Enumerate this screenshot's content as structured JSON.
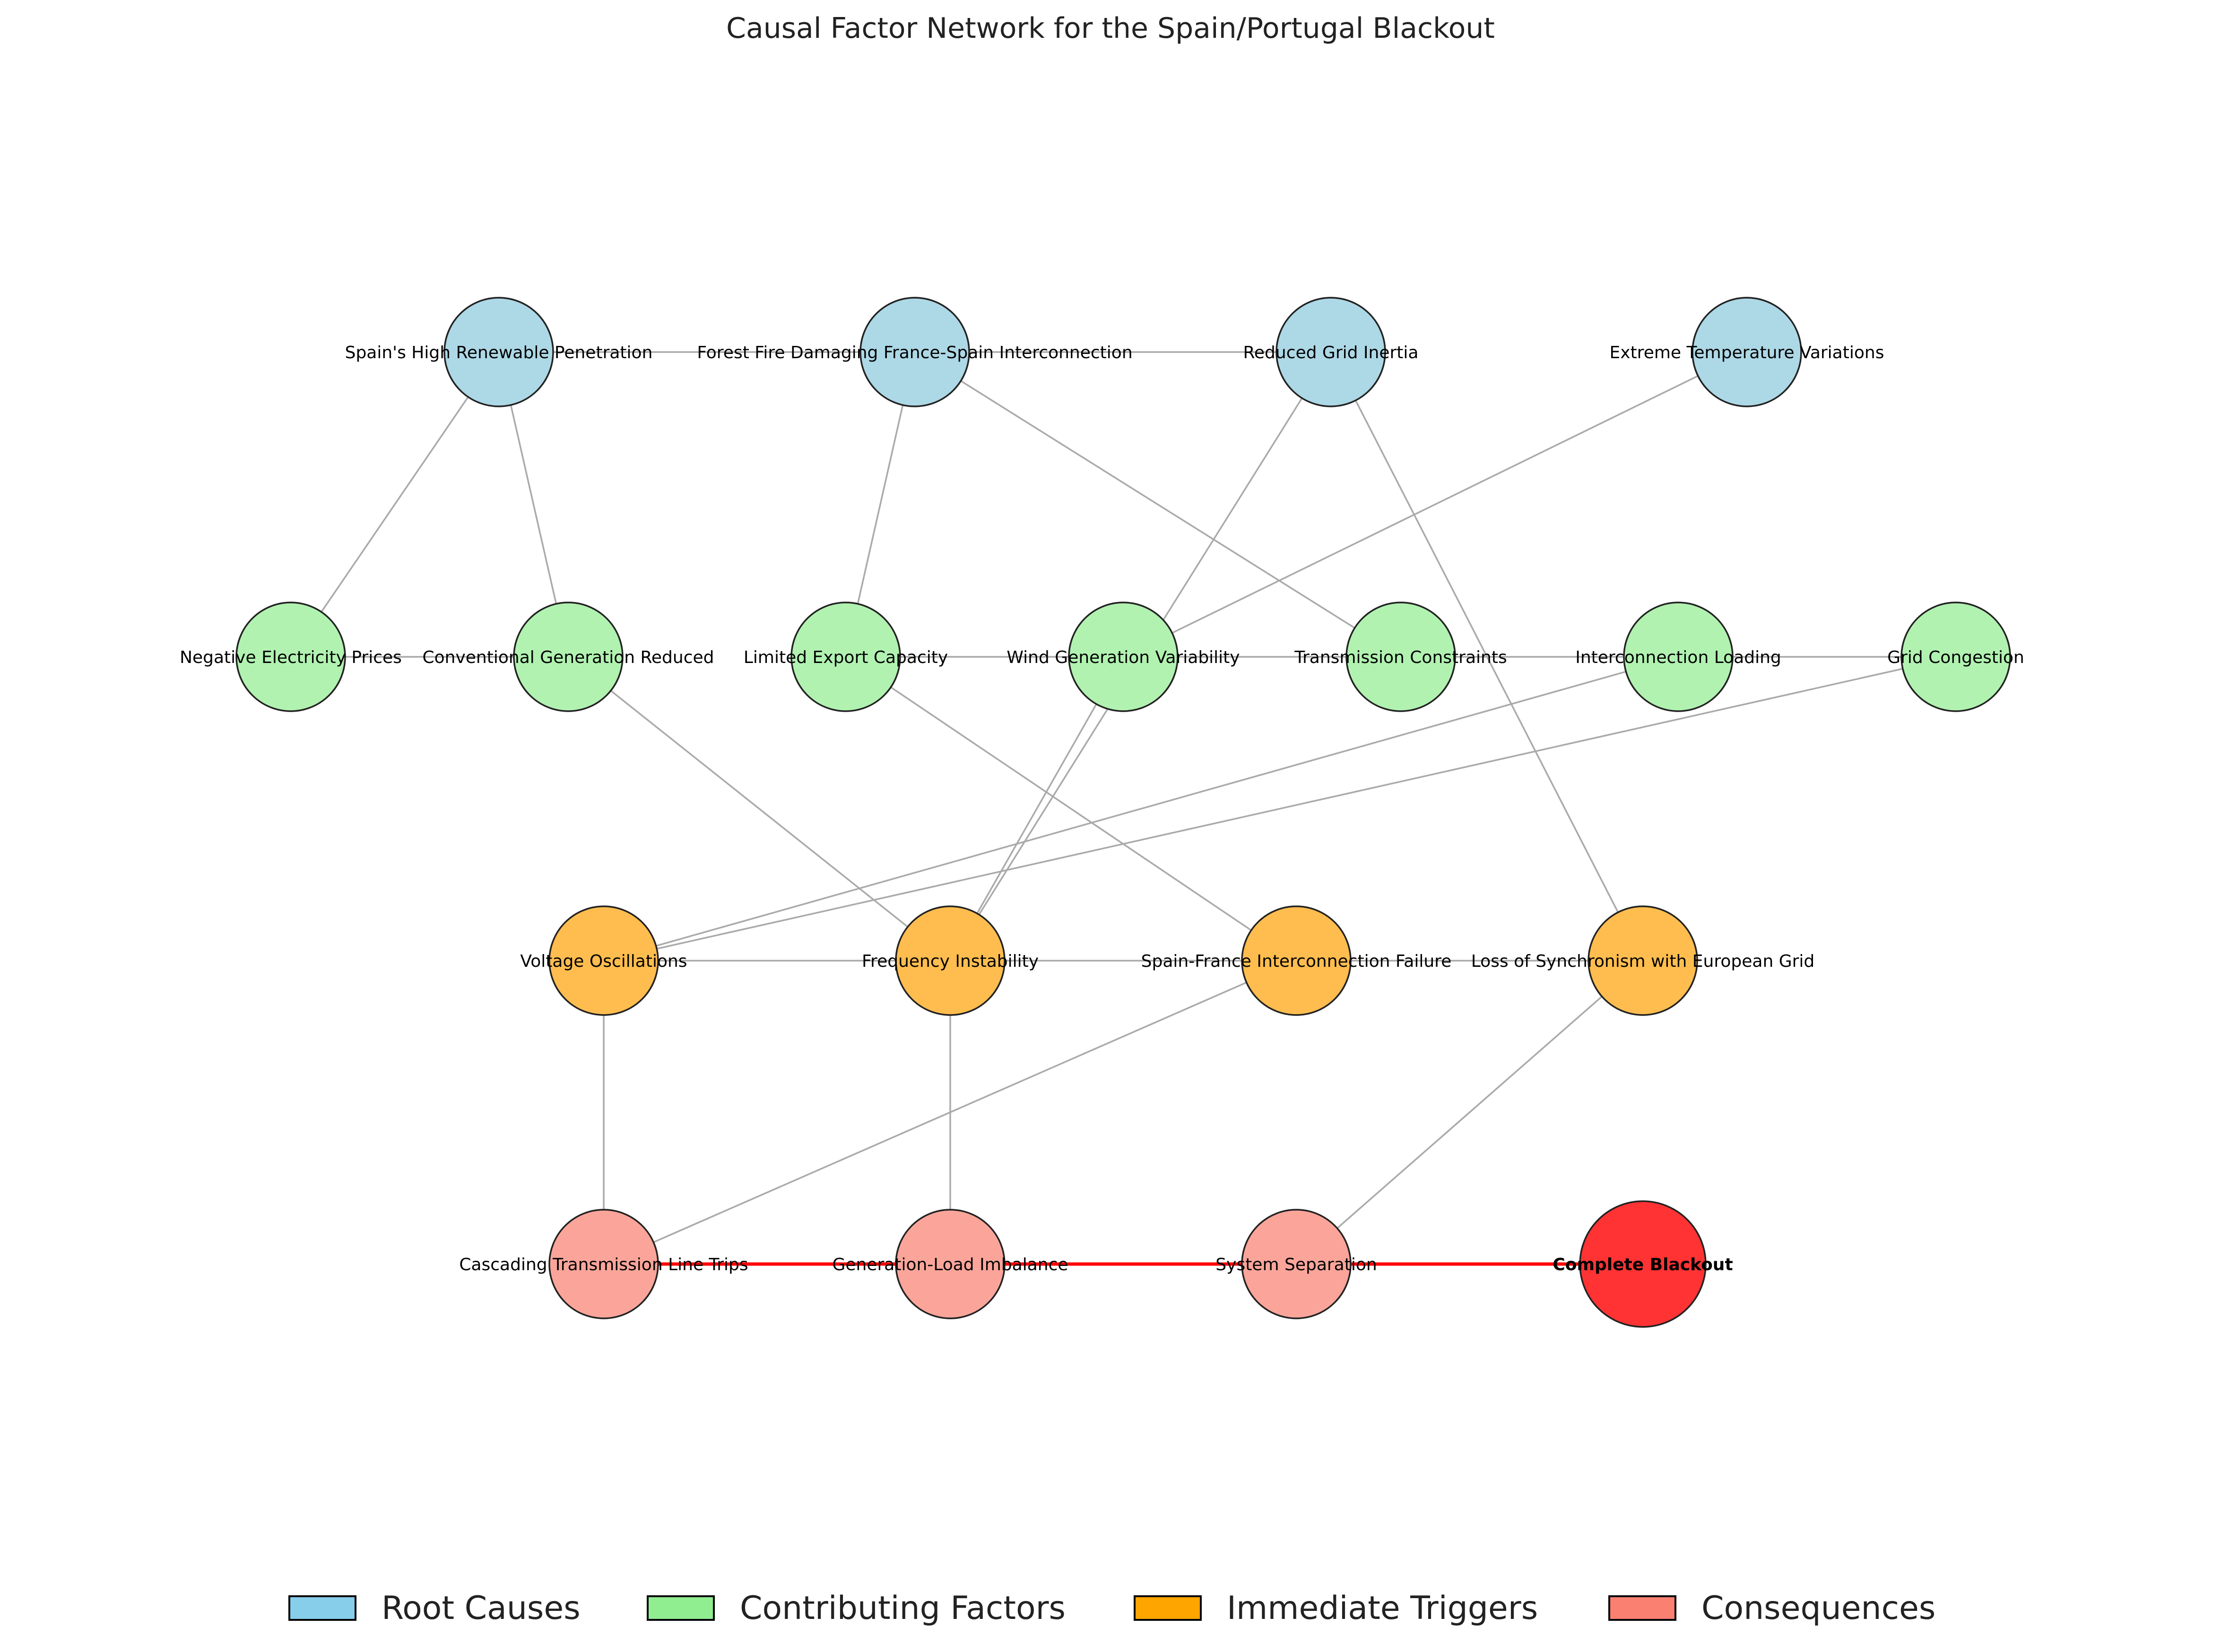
{
  "title": "Causal Factor Network for the Spain/Portugal Blackout",
  "colors": {
    "root": "#ADD8E6",
    "contributing": "#B1F2B1",
    "trigger": "#FFBD4F",
    "consequence": "#FBA59A",
    "blackout": "#FF3333",
    "edge": "#AAAAAA",
    "critical_edge": "#FF0000",
    "legend_root": "#87CEEB",
    "legend_contributing": "#90EE90",
    "legend_trigger": "#FFA500",
    "legend_consequence": "#FA8072"
  },
  "nodes": [
    {
      "id": "spain_renewable",
      "label": "Spain's High Renewable Penetration",
      "group": "root"
    },
    {
      "id": "forest_fire",
      "label": "Forest Fire Damaging France-Spain Interconnection",
      "group": "root"
    },
    {
      "id": "reduced_inertia",
      "label": "Reduced Grid Inertia",
      "group": "root"
    },
    {
      "id": "extreme_temp",
      "label": "Extreme Temperature Variations",
      "group": "root"
    },
    {
      "id": "negative_prices",
      "label": "Negative Electricity Prices",
      "group": "contributing"
    },
    {
      "id": "conventional_reduced",
      "label": "Conventional Generation Reduced",
      "group": "contributing"
    },
    {
      "id": "limited_export",
      "label": "Limited Export Capacity",
      "group": "contributing"
    },
    {
      "id": "wind_variability",
      "label": "Wind Generation Variability",
      "group": "contributing"
    },
    {
      "id": "transmission_constraints",
      "label": "Transmission Constraints",
      "group": "contributing"
    },
    {
      "id": "interconnection_loading",
      "label": "Interconnection Loading",
      "group": "contributing"
    },
    {
      "id": "grid_congestion",
      "label": "Grid Congestion",
      "group": "contributing"
    },
    {
      "id": "voltage_osc",
      "label": "Voltage Oscillations",
      "group": "trigger"
    },
    {
      "id": "freq_instability",
      "label": "Frequency Instability",
      "group": "trigger"
    },
    {
      "id": "interconnection_failure",
      "label": "Spain-France Interconnection Failure",
      "group": "trigger"
    },
    {
      "id": "loss_sync",
      "label": "Loss of Synchronism with European Grid",
      "group": "trigger"
    },
    {
      "id": "cascading_trips",
      "label": "Cascading Transmission Line Trips",
      "group": "consequence"
    },
    {
      "id": "gen_load_imbalance",
      "label": "Generation-Load Imbalance",
      "group": "consequence"
    },
    {
      "id": "system_separation",
      "label": "System Separation",
      "group": "consequence"
    },
    {
      "id": "complete_blackout",
      "label": "Complete Blackout",
      "group": "blackout"
    }
  ],
  "edges": [
    [
      "spain_renewable",
      "forest_fire"
    ],
    [
      "forest_fire",
      "reduced_inertia"
    ],
    [
      "spain_renewable",
      "negative_prices"
    ],
    [
      "spain_renewable",
      "conventional_reduced"
    ],
    [
      "negative_prices",
      "conventional_reduced"
    ],
    [
      "forest_fire",
      "limited_export"
    ],
    [
      "forest_fire",
      "transmission_constraints"
    ],
    [
      "reduced_inertia",
      "freq_instability"
    ],
    [
      "reduced_inertia",
      "loss_sync"
    ],
    [
      "extreme_temp",
      "wind_variability"
    ],
    [
      "limited_export",
      "wind_variability"
    ],
    [
      "wind_variability",
      "transmission_constraints"
    ],
    [
      "transmission_constraints",
      "interconnection_loading"
    ],
    [
      "interconnection_loading",
      "grid_congestion"
    ],
    [
      "conventional_reduced",
      "freq_instability"
    ],
    [
      "limited_export",
      "interconnection_failure"
    ],
    [
      "wind_variability",
      "freq_instability"
    ],
    [
      "interconnection_loading",
      "voltage_osc"
    ],
    [
      "grid_congestion",
      "voltage_osc"
    ],
    [
      "voltage_osc",
      "freq_instability"
    ],
    [
      "freq_instability",
      "interconnection_failure"
    ],
    [
      "interconnection_failure",
      "loss_sync"
    ],
    [
      "voltage_osc",
      "cascading_trips"
    ],
    [
      "freq_instability",
      "gen_load_imbalance"
    ],
    [
      "interconnection_failure",
      "cascading_trips"
    ],
    [
      "loss_sync",
      "system_separation"
    ]
  ],
  "critical_path": [
    "cascading_trips",
    "gen_load_imbalance",
    "system_separation",
    "complete_blackout"
  ],
  "legend": [
    {
      "label": "Root Causes",
      "color_key": "legend_root"
    },
    {
      "label": "Contributing Factors",
      "color_key": "legend_contributing"
    },
    {
      "label": "Immediate Triggers",
      "color_key": "legend_trigger"
    },
    {
      "label": "Consequences",
      "color_key": "legend_consequence"
    }
  ]
}
